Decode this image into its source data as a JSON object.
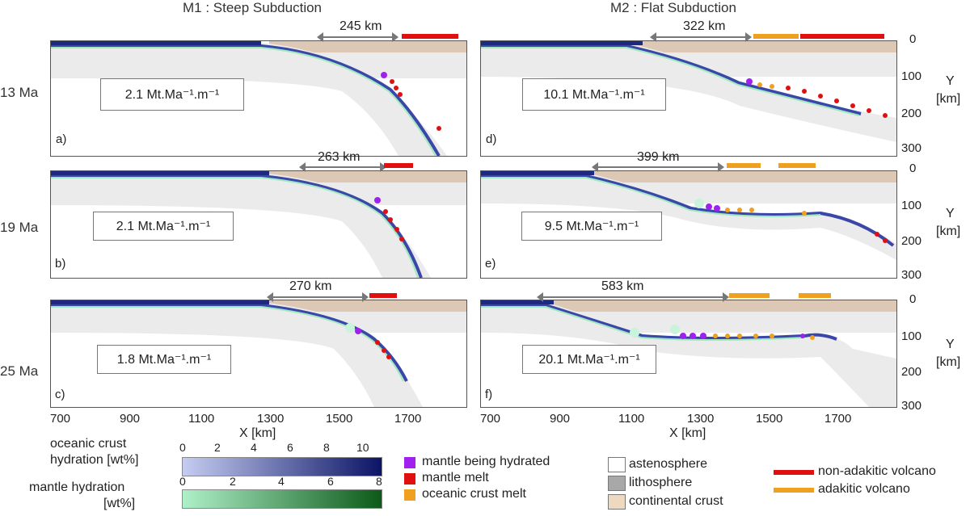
{
  "titles": {
    "m1": "M1 : Steep Subduction",
    "m2": "M2 : Flat Subduction"
  },
  "time_labels": [
    "13 Ma",
    "19 Ma",
    "25 Ma"
  ],
  "panels": [
    {
      "letter": "a)",
      "flux": "2.1 Mt.Ma⁻¹.m⁻¹",
      "distance": "245 km"
    },
    {
      "letter": "b)",
      "flux": "2.1 Mt.Ma⁻¹.m⁻¹",
      "distance": "263 km"
    },
    {
      "letter": "c)",
      "flux": "1.8 Mt.Ma⁻¹.m⁻¹",
      "distance": "270 km"
    },
    {
      "letter": "d)",
      "flux": "10.1 Mt.Ma⁻¹.m⁻¹",
      "distance": "322 km"
    },
    {
      "letter": "e)",
      "flux": "9.5 Mt.Ma⁻¹.m⁻¹",
      "distance": "399 km"
    },
    {
      "letter": "f)",
      "flux": "20.1 Mt.Ma⁻¹.m⁻¹",
      "distance": "583 km"
    }
  ],
  "x_ticks": [
    "700",
    "900",
    "1100",
    "1300",
    "1500",
    "1700"
  ],
  "x_label": "X [km]",
  "y_ticks": [
    "0",
    "100",
    "200",
    "300"
  ],
  "y_label_top": "Y",
  "y_label_unit": "[km]",
  "colorbars": {
    "crust": {
      "title_1": "oceanic crust",
      "title_2": "hydration [wt%]",
      "ticks": [
        "0",
        "2",
        "4",
        "6",
        "8",
        "10"
      ],
      "color_low": "#c5cdf2",
      "color_high": "#0c1466"
    },
    "mantle": {
      "title_1": "mantle hydration",
      "title_2": "[wt%]",
      "ticks": [
        "0",
        "2",
        "4",
        "6",
        "8"
      ],
      "color_low": "#aef0c8",
      "color_high": "#0d5a1a"
    }
  },
  "legend_melt": [
    {
      "label": "mantle being hydrated",
      "color": "#a020f0"
    },
    {
      "label": "mantle melt",
      "color": "#e01010"
    },
    {
      "label": "oceanic crust melt",
      "color": "#f0a020"
    }
  ],
  "legend_material": [
    {
      "label": "astenosphere",
      "color": "#ffffff"
    },
    {
      "label": "lithosphere",
      "color": "#a8a8a8"
    },
    {
      "label": "continental crust",
      "color": "#eed9c0"
    }
  ],
  "legend_volcano": [
    {
      "label": "non-adakitic volcano",
      "color": "#e01010"
    },
    {
      "label": "adakitic volcano",
      "color": "#f0a020"
    }
  ],
  "colors": {
    "lithosphere": "#ebebeb",
    "continental_crust": "#dcc8b4",
    "slab_blue": "#3a47a8",
    "mantle_green": "#9fe8c0"
  }
}
